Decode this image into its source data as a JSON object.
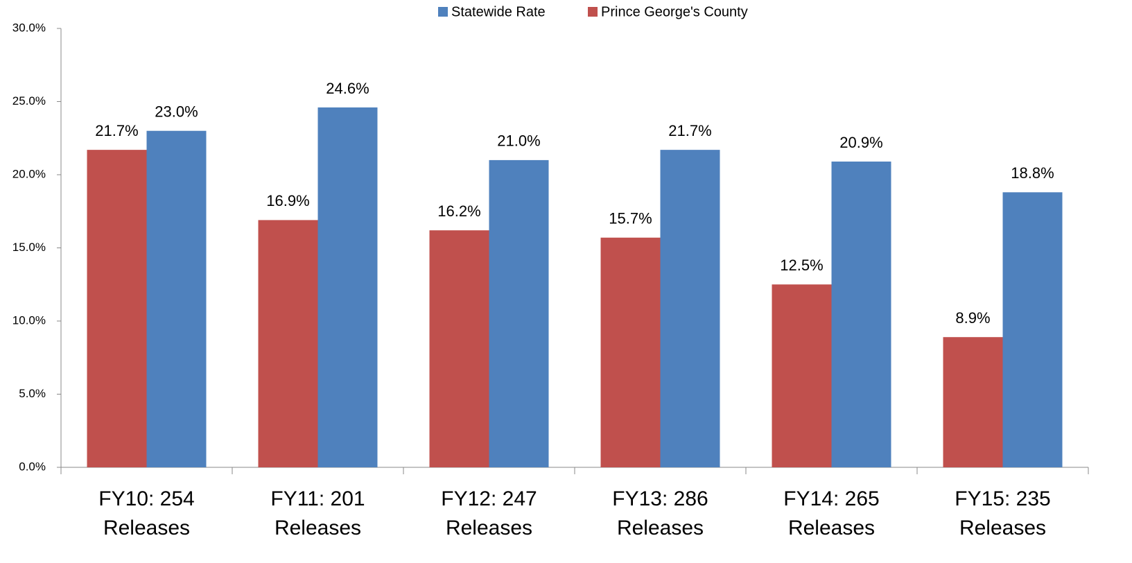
{
  "chart_data": {
    "type": "bar",
    "categories": [
      "FY10: 254 Releases",
      "FY11: 201 Releases",
      "FY12: 247 Releases",
      "FY13: 286 Releases",
      "FY14: 265 Releases",
      "FY15: 235 Releases"
    ],
    "series": [
      {
        "name": "Statewide Rate",
        "color": "#4f81bd",
        "values": [
          23.0,
          24.6,
          21.0,
          21.7,
          20.9,
          18.8
        ],
        "value_labels": [
          "23.0%",
          "24.6%",
          "21.0%",
          "21.7%",
          "20.9%",
          "18.8%"
        ]
      },
      {
        "name": "Prince George's County",
        "color": "#c0504d",
        "values": [
          21.7,
          16.9,
          16.2,
          15.7,
          12.5,
          8.9
        ],
        "value_labels": [
          "21.7%",
          "16.9%",
          "16.2%",
          "15.7%",
          "12.5%",
          "8.9%"
        ]
      }
    ],
    "ylim": [
      0,
      30
    ],
    "yticks": [
      {
        "value": 0,
        "label": "0.0%"
      },
      {
        "value": 5,
        "label": "5.0%"
      },
      {
        "value": 10,
        "label": "10.0%"
      },
      {
        "value": 15,
        "label": "15.0%"
      },
      {
        "value": 20,
        "label": "20.0%"
      },
      {
        "value": 25,
        "label": "25.0%"
      },
      {
        "value": 30,
        "label": "30.0%"
      }
    ],
    "legend": "top",
    "grid": false
  }
}
